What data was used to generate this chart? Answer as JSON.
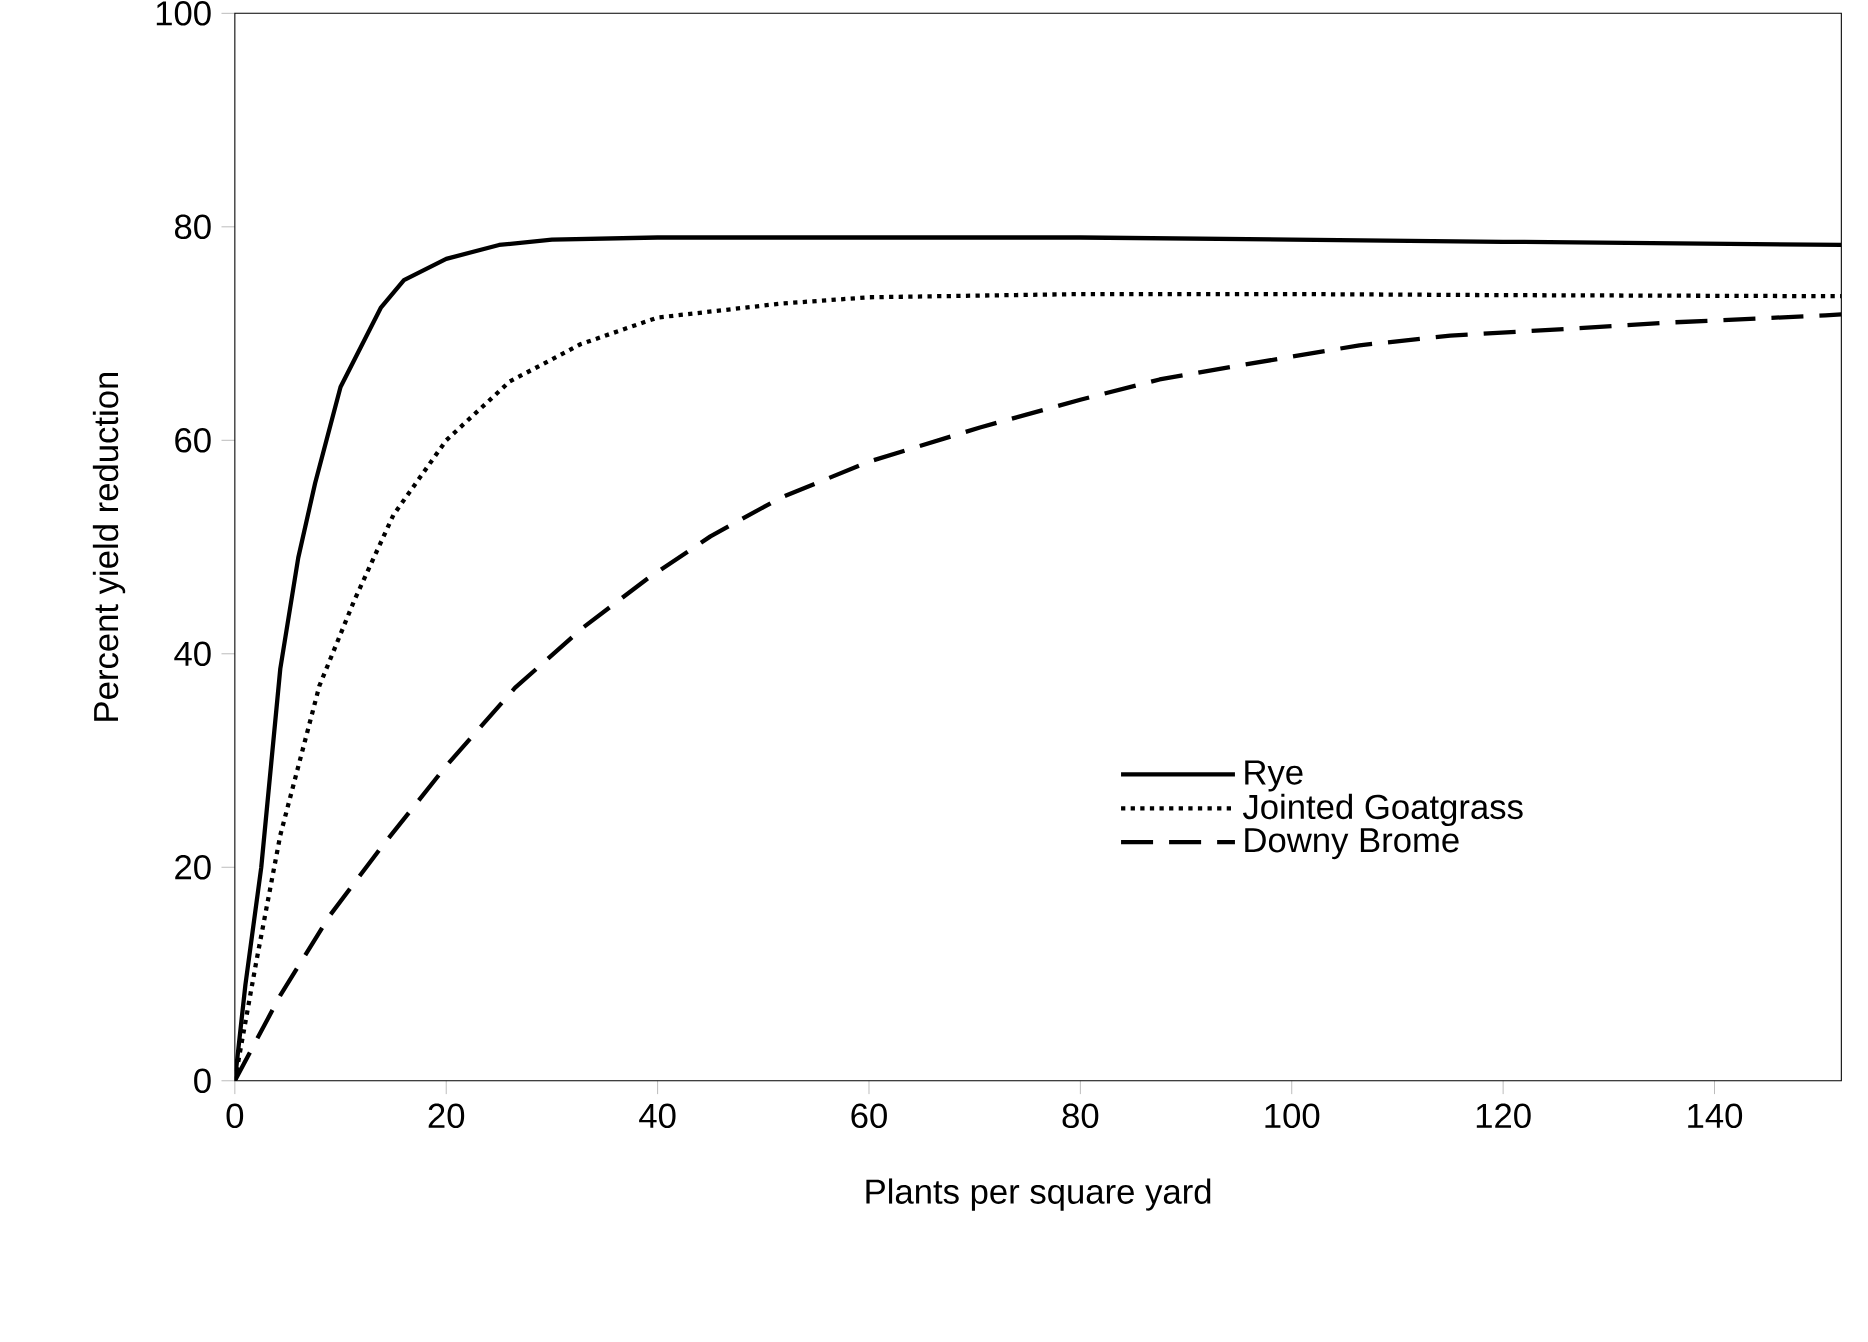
{
  "chart_data": {
    "type": "line",
    "xlabel": "Plants per square yard",
    "ylabel": "Percent yield reduction",
    "xlim": [
      0,
      152
    ],
    "ylim": [
      0,
      100
    ],
    "xticks": [
      0,
      20,
      40,
      60,
      80,
      100,
      120,
      140
    ],
    "yticks": [
      0,
      20,
      40,
      60,
      80,
      100
    ],
    "grid": false,
    "legend": "bottom right",
    "series": [
      {
        "name": "Rye",
        "color": "#000000",
        "line_style": "solid",
        "x": [
          0,
          1,
          2.5,
          4.3,
          6,
          7.6,
          10,
          13.8,
          16,
          20,
          25,
          30,
          40,
          60,
          80,
          100,
          120,
          152
        ],
        "values": [
          0,
          9,
          20,
          38.6,
          49,
          56,
          65,
          72.4,
          75,
          77,
          78.3,
          78.8,
          79,
          79,
          79,
          78.8,
          78.6,
          78.3
        ]
      },
      {
        "name": "Jointed Goatgrass",
        "color": "#000000",
        "line_style": "dotted",
        "x": [
          0,
          2,
          4.3,
          8,
          11.3,
          15,
          20,
          26,
          32.7,
          40,
          51.6,
          60,
          80,
          100,
          120,
          152
        ],
        "values": [
          0,
          11,
          23,
          37,
          45,
          53,
          60,
          65.5,
          69,
          71.5,
          72.8,
          73.4,
          73.7,
          73.7,
          73.6,
          73.5
        ]
      },
      {
        "name": "Downy Brome",
        "color": "#000000",
        "line_style": "dashed",
        "x": [
          0,
          4.3,
          9,
          13.8,
          20,
          26.5,
          33,
          39,
          45,
          51.6,
          60,
          70.5,
          80,
          87.5,
          95,
          106.4,
          115,
          125.3,
          135,
          150.5,
          152
        ],
        "values": [
          0,
          8,
          15.5,
          21.8,
          29.5,
          36.8,
          42.5,
          47,
          51,
          54.6,
          58,
          61.2,
          63.8,
          65.7,
          67,
          68.9,
          69.8,
          70.4,
          71,
          71.7,
          71.8
        ]
      }
    ]
  }
}
